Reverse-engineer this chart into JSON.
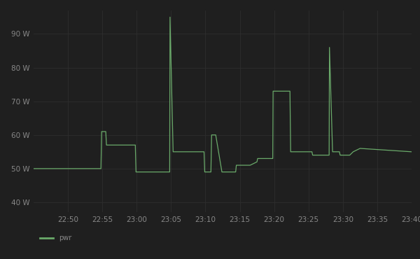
{
  "bg_color": "#1f1f1f",
  "line_color": "#6aaa6a",
  "grid_color": "#2e2e2e",
  "tick_color": "#888888",
  "legend_label": "pwr",
  "ylim": [
    37,
    97
  ],
  "yticks": [
    40,
    50,
    60,
    70,
    80,
    90
  ],
  "ytick_labels": [
    "40 W",
    "50 W",
    "60 W",
    "70 W",
    "80 W",
    "90 W"
  ],
  "xtick_labels": [
    "22:50",
    "22:55",
    "23:00",
    "23:05",
    "23:10",
    "23:15",
    "23:20",
    "23:25",
    "23:30",
    "23:35",
    "23:40"
  ],
  "xlim": [
    0,
    55
  ],
  "xtick_positions": [
    5,
    10,
    15,
    20,
    25,
    30,
    35,
    40,
    45,
    50,
    55
  ],
  "x": [
    0,
    9.8,
    9.8,
    9.9,
    10.5,
    10.6,
    10.6,
    11.5,
    11.5,
    12.0,
    12.0,
    14.8,
    14.8,
    14.9,
    14.9,
    19.8,
    19.8,
    19.85,
    19.85,
    20.3,
    20.3,
    24.8,
    24.8,
    24.9,
    24.9,
    25.8,
    25.8,
    25.9,
    26.4,
    26.5,
    26.5,
    27.4,
    27.4,
    27.5,
    27.5,
    29.4,
    29.4,
    29.5,
    29.5,
    30.5,
    30.5,
    31.5,
    31.5,
    32.5,
    32.5,
    32.6,
    32.6,
    34.8,
    34.8,
    34.85,
    34.85,
    37.3,
    37.3,
    37.4,
    37.4,
    37.5,
    37.5,
    39.5,
    39.5,
    40.5,
    40.5,
    40.6,
    40.6,
    41.5,
    41.5,
    43.0,
    43.0,
    43.05,
    43.05,
    43.5,
    43.5,
    44.5,
    44.5,
    44.6,
    44.6,
    45.5,
    45.5,
    46.0,
    46.0,
    46.5,
    46.5,
    47.5,
    47.5,
    55.0
  ],
  "y": [
    50,
    50,
    50,
    61,
    61,
    57,
    57,
    57,
    57,
    57,
    57,
    57,
    57,
    49,
    49,
    49,
    49,
    95,
    95,
    55,
    55,
    55,
    55,
    49,
    49,
    49,
    49,
    60,
    60,
    60,
    60,
    49,
    49,
    49,
    49,
    49,
    49,
    51,
    51,
    51,
    51,
    51,
    51,
    52,
    52,
    53,
    53,
    53,
    53,
    73,
    73,
    73,
    73,
    55,
    55,
    55,
    55,
    55,
    55,
    55,
    55,
    54,
    54,
    54,
    54,
    54,
    54,
    86,
    86,
    55,
    55,
    55,
    55,
    54,
    54,
    54,
    54,
    54,
    54,
    55,
    55,
    56,
    56,
    55
  ]
}
